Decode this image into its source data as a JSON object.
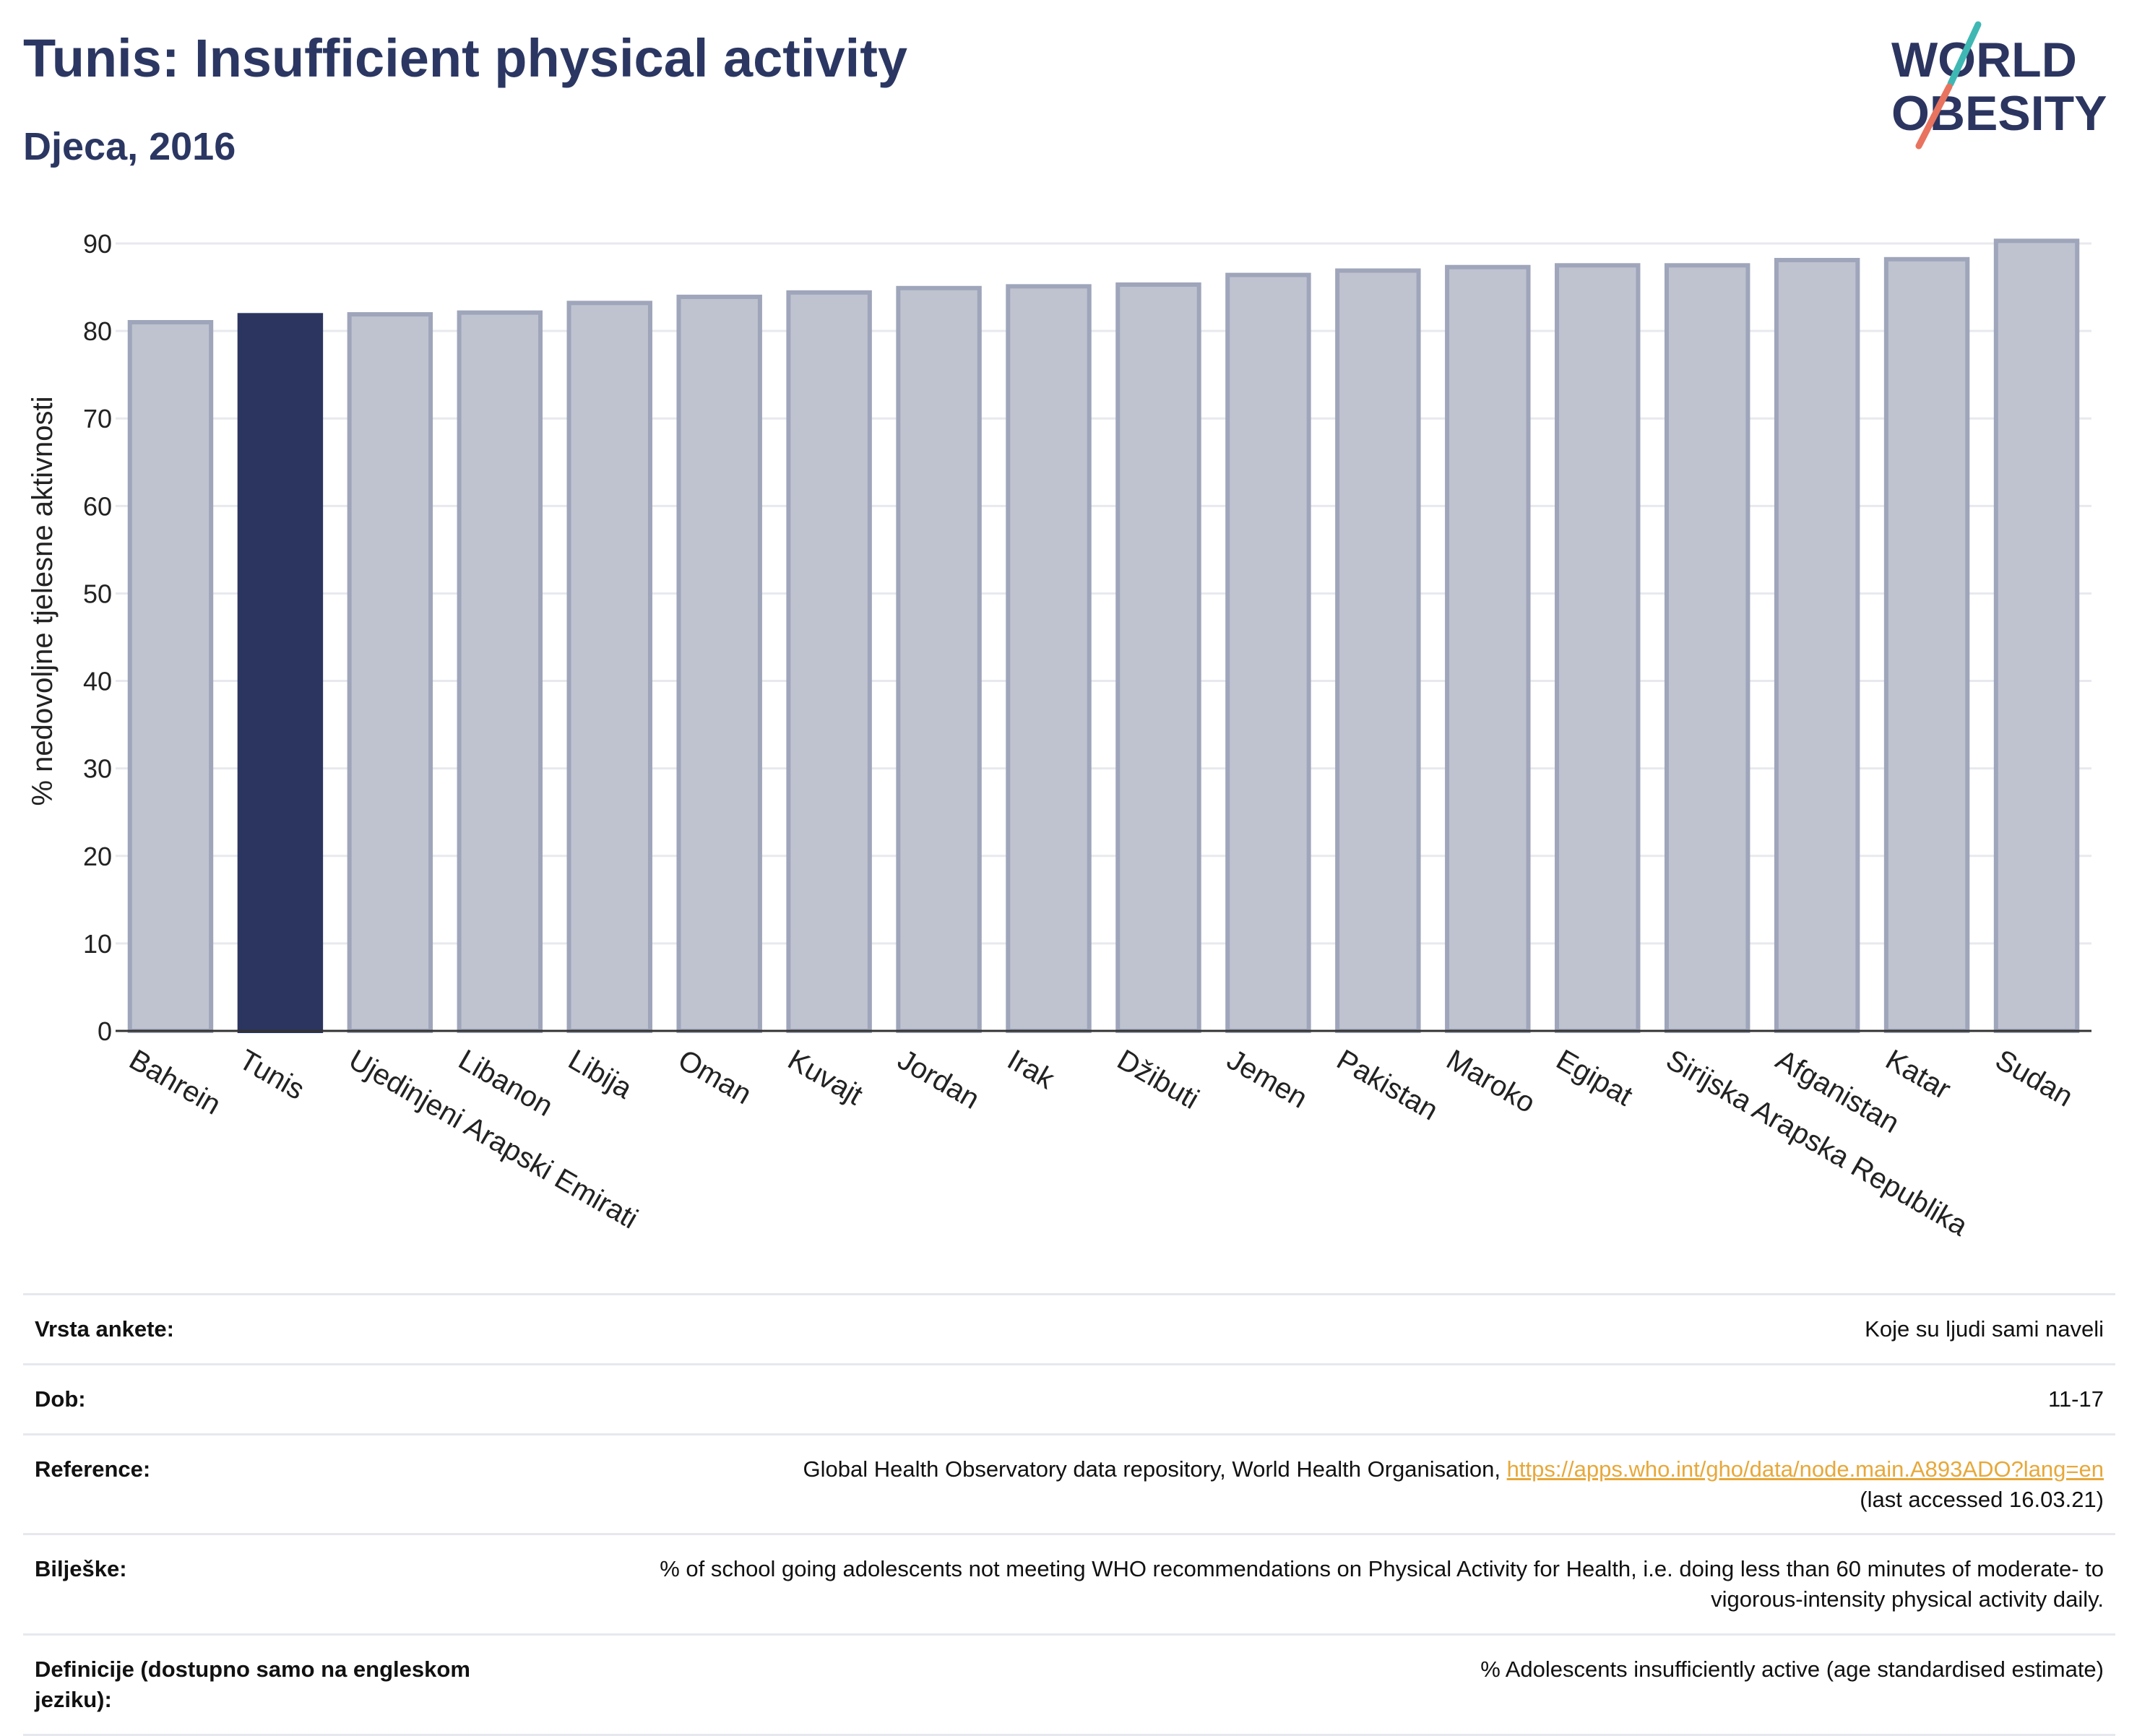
{
  "header": {
    "title": "Tunis: Insufficient physical activity",
    "subtitle": "Djeca, 2016"
  },
  "logo": {
    "line1": "WORLD",
    "line2": "OBESITY",
    "slash_colors": [
      "#3fb8b4",
      "#e8735f"
    ]
  },
  "colors": {
    "highlight": "#2b3560",
    "bar_fill": "#bfc3d0",
    "bar_stroke": "#9fa5ba",
    "gridline": "#e8e9ee",
    "axis": "#333333"
  },
  "chart_data": {
    "type": "bar",
    "ylabel": "% nedovoljne tjelesne aktivnosti",
    "ylim": [
      0,
      90
    ],
    "yticks": [
      0,
      10,
      20,
      30,
      40,
      50,
      60,
      70,
      80,
      90
    ],
    "grid": true,
    "highlight": "Tunis",
    "categories": [
      "Bahrein",
      "Tunis",
      "Ujedinjeni Arapski Emirati",
      "Libanon",
      "Libija",
      "Oman",
      "Kuvajt",
      "Jordan",
      "Irak",
      "Džibuti",
      "Jemen",
      "Pakistan",
      "Maroko",
      "Egipat",
      "Sirijska Arapska Republika",
      "Afganistan",
      "Katar",
      "Sudan"
    ],
    "values": [
      81.0,
      81.8,
      81.9,
      82.1,
      83.2,
      83.9,
      84.4,
      84.9,
      85.1,
      85.3,
      86.4,
      86.9,
      87.3,
      87.5,
      87.5,
      88.1,
      88.2,
      90.3
    ]
  },
  "info": [
    {
      "label": "Vrsta ankete:",
      "value": "Koje su ljudi sami naveli"
    },
    {
      "label": "Dob:",
      "value": "11-17"
    },
    {
      "label": "Reference:",
      "value_prefix": "Global Health Observatory data repository, World Health Organisation, ",
      "link": "https://apps.who.int/gho/data/node.main.A893ADO?lang=en",
      "value_suffix": "(last accessed 16.03.21)"
    },
    {
      "label": "Bilješke:",
      "value": "% of school going adolescents not meeting WHO recommendations on Physical Activity for Health, i.e. doing less than 60 minutes of moderate- to vigorous-intensity physical activity daily."
    },
    {
      "label": "Definicije (dostupno samo na engleskom jeziku):",
      "value": "% Adolescents insufficiently active (age standardised estimate)"
    }
  ]
}
